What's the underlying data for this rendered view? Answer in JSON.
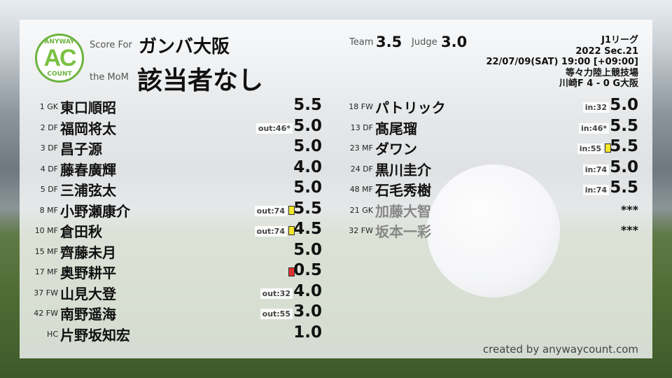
{
  "header": {
    "score_for_label": "Score For",
    "team": "ガンバ大阪",
    "mom_label": "the MoM",
    "mom": "該当者なし",
    "team_label": "Team",
    "team_score": "3.5",
    "judge_label": "Judge",
    "judge_score": "3.0"
  },
  "logo": {
    "top": "ANYWAY",
    "mid": "AC",
    "bottom": "COUNT"
  },
  "match": {
    "league": "J1リーグ",
    "season": "2022 Sec.21",
    "datetime": "22/07/09(SAT) 19:00 [+09:00]",
    "venue": "等々力陸上競技場",
    "result": "川崎F 4 - 0 G大阪"
  },
  "left_players": [
    {
      "num_pos": "1 GK",
      "name": "東口順昭",
      "sub": "",
      "card": "",
      "score": "5.5"
    },
    {
      "num_pos": "2 DF",
      "name": "福岡将太",
      "sub": "out:46*",
      "card": "",
      "score": "5.0"
    },
    {
      "num_pos": "3 DF",
      "name": "昌子源",
      "sub": "",
      "card": "",
      "score": "5.0"
    },
    {
      "num_pos": "4 DF",
      "name": "藤春廣輝",
      "sub": "",
      "card": "",
      "score": "4.0"
    },
    {
      "num_pos": "5 DF",
      "name": "三浦弦太",
      "sub": "",
      "card": "",
      "score": "5.0"
    },
    {
      "num_pos": "8 MF",
      "name": "小野瀬康介",
      "sub": "out:74",
      "card": "yellow",
      "score": "5.5"
    },
    {
      "num_pos": "10 MF",
      "name": "倉田秋",
      "sub": "out:74",
      "card": "yellow",
      "score": "4.5"
    },
    {
      "num_pos": "15 MF",
      "name": "齊藤未月",
      "sub": "",
      "card": "",
      "score": "5.0"
    },
    {
      "num_pos": "17 MF",
      "name": "奥野耕平",
      "sub": "",
      "card": "red",
      "score": "0.5"
    },
    {
      "num_pos": "37 FW",
      "name": "山見大登",
      "sub": "out:32",
      "card": "",
      "score": "4.0"
    },
    {
      "num_pos": "42 FW",
      "name": "南野遥海",
      "sub": "out:55",
      "card": "",
      "score": "3.0"
    },
    {
      "num_pos": "HC",
      "name": "片野坂知宏",
      "sub": "",
      "card": "",
      "score": "1.0"
    }
  ],
  "right_players": [
    {
      "num_pos": "18 FW",
      "name": "パトリック",
      "sub": "in:32",
      "card": "",
      "score": "5.0"
    },
    {
      "num_pos": "13 DF",
      "name": "髙尾瑠",
      "sub": "in:46*",
      "card": "",
      "score": "5.5"
    },
    {
      "num_pos": "23 MF",
      "name": "ダワン",
      "sub": "in:55",
      "card": "yellow",
      "score": "5.5"
    },
    {
      "num_pos": "24 DF",
      "name": "黒川圭介",
      "sub": "in:74",
      "card": "",
      "score": "5.0"
    },
    {
      "num_pos": "48 MF",
      "name": "石毛秀樹",
      "sub": "in:74",
      "card": "",
      "score": "5.5"
    },
    {
      "num_pos": "21 GK",
      "name": "加藤大智",
      "sub": "",
      "card": "",
      "score": "***",
      "dim": true
    },
    {
      "num_pos": "32 FW",
      "name": "坂本一彩",
      "sub": "",
      "card": "",
      "score": "***",
      "dim": true
    }
  ],
  "colors": {
    "yellow": "#f2e62a",
    "red": "#e03030",
    "accent": "#6cb33f"
  },
  "credit": "created by anywaycount.com"
}
